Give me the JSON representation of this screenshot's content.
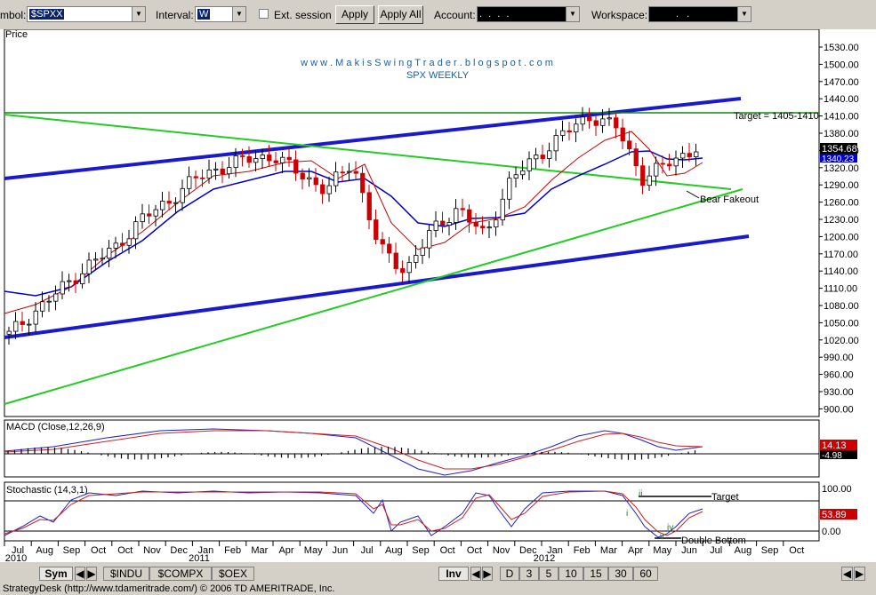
{
  "toolbar": {
    "symbol_label": "mbol:",
    "symbol_value": "$SPXX",
    "interval_label": "Interval:",
    "interval_value": "W",
    "ext_session_label": "Ext. session",
    "apply_label": "Apply",
    "apply_all_label": "Apply All",
    "account_label": "Account:",
    "account_value": ".   .   .   .",
    "workspace_label": "Workspace:",
    "workspace_value": ". ."
  },
  "chart": {
    "price_label": "Price",
    "watermark": "w w w . M a k i s S w i n g T r a d e r . b l o g s p o t . c o m",
    "subtitle": "SPX WEEKLY",
    "target_note": "Target = 1405-1410",
    "bear_fakeout": "Bear Fakeout",
    "price_ticks": [
      "1530.00",
      "1500.00",
      "1470.00",
      "1440.00",
      "1410.00",
      "1380.00",
      "1350.00",
      "1320.00",
      "1290.00",
      "1260.00",
      "1230.00",
      "1200.00",
      "1170.00",
      "1140.00",
      "1110.00",
      "1080.00",
      "1050.00",
      "1020.00",
      "990.00",
      "960.00",
      "930.00",
      "900.00"
    ],
    "last_price": "1354.68",
    "ma_value": "1340.23",
    "macd_label": "MACD (Close,12,26,9)",
    "macd_value": "14.13",
    "macd_hist_value": "-4.98",
    "stoch_label": "Stochastic (14,3,1)",
    "stoch_ticks": [
      "100.00",
      "0.00"
    ],
    "stoch_value": "53.89",
    "stoch_target": "Target",
    "double_bottom": "Double Bottom",
    "wave_i": "i",
    "wave_ii": "ii",
    "wave_iv": "iv",
    "wave_v": "v",
    "months": [
      "Jul",
      "Aug",
      "Sep",
      "Oct",
      "Oct",
      "Nov",
      "Dec",
      "Jan",
      "Feb",
      "Mar",
      "Apr",
      "May",
      "Jun",
      "Jul",
      "Aug",
      "Sep",
      "Oct",
      "Oct",
      "Nov",
      "Dec",
      "Jan",
      "Feb",
      "Mar",
      "Apr",
      "May",
      "Jun",
      "Jul",
      "Aug",
      "Sep",
      "Oct"
    ],
    "years": [
      "2010",
      "2011",
      "2012"
    ],
    "colors": {
      "up": "#000000",
      "down": "#cc0000",
      "blue": "#1a1acc",
      "green": "#22cc22",
      "ma_fast": "#cc0000",
      "ma_slow": "#0000cc"
    }
  },
  "chart_data": {
    "type": "line",
    "title": "SPX WEEKLY",
    "ylabel": "Price",
    "ylim": [
      900,
      1530
    ],
    "series": [
      {
        "name": "SPX",
        "values": [
          1030,
          1070,
          1110,
          1150,
          1180,
          1230,
          1260,
          1300,
          1320,
          1335,
          1340,
          1310,
          1280,
          1330,
          1180,
          1140,
          1210,
          1250,
          1200,
          1300,
          1340,
          1380,
          1410,
          1390,
          1300,
          1330,
          1354
        ]
      }
    ]
  },
  "bottom": {
    "sym_tab": "Sym",
    "tabs": [
      "$INDU",
      "$COMPX",
      "$OEX"
    ],
    "inv_tab": "Inv",
    "intervals": [
      "D",
      "3",
      "5",
      "10",
      "15",
      "30",
      "60"
    ]
  },
  "status": "StrategyDesk (http://www.tdameritrade.com/) © 2006 TD AMERITRADE, Inc."
}
